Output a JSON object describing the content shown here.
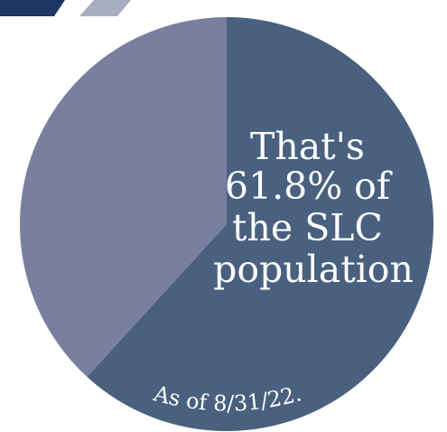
{
  "colors": {
    "large_slice": "#49607f",
    "small_slice": "#797f9f",
    "banner_dark": "#1f3763",
    "banner_light": "#a6adc0"
  },
  "chart_data": {
    "type": "pie",
    "slices": [
      {
        "value": 61.8,
        "color": "#49607f"
      },
      {
        "value": 38.2,
        "color": "#797f9f"
      }
    ],
    "start": "top",
    "direction": "clockwise",
    "annotation_lines": [
      "That's",
      "61.8% of",
      "the SLC",
      "population"
    ],
    "note": "As of 8/31/22."
  }
}
